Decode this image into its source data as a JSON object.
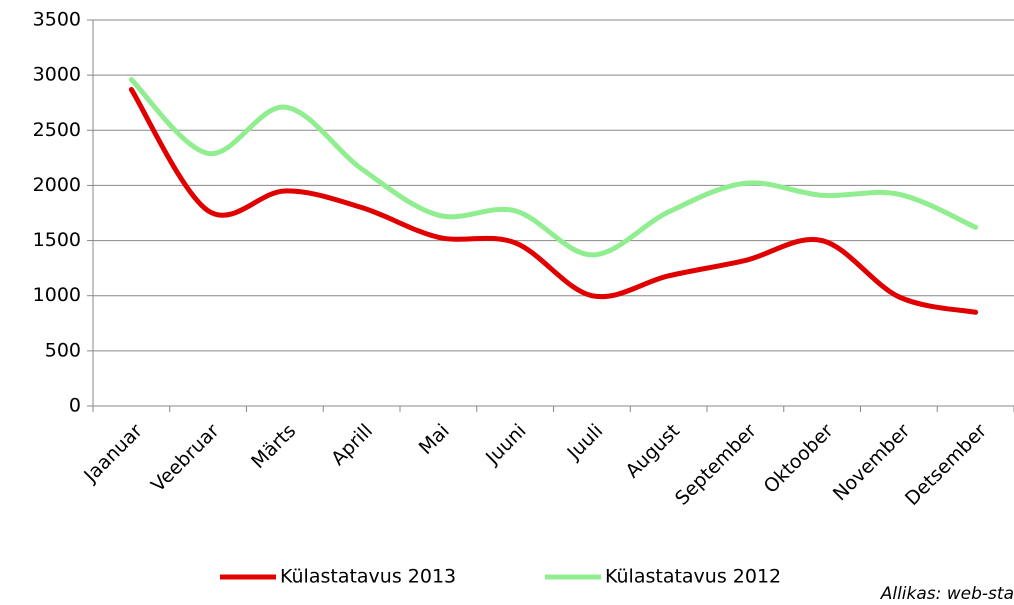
{
  "chart_data": {
    "type": "line",
    "categories": [
      "Jaanuar",
      "Veebruar",
      "Märts",
      "Aprill",
      "Mai",
      "Juuni",
      "Juuli",
      "August",
      "September",
      "Oktoober",
      "November",
      "Detsember"
    ],
    "series": [
      {
        "name": "Külastatavus 2013",
        "color": "#e00000",
        "values": [
          2870,
          1770,
          1950,
          1800,
          1530,
          1480,
          1000,
          1180,
          1320,
          1500,
          990,
          850
        ]
      },
      {
        "name": "Külastatavus 2012",
        "color": "#90ee90",
        "values": [
          2960,
          2290,
          2710,
          2150,
          1730,
          1770,
          1370,
          1760,
          2020,
          1910,
          1920,
          1620
        ]
      }
    ],
    "ylim": [
      0,
      3500
    ],
    "yticks": [
      0,
      500,
      1000,
      1500,
      2000,
      2500,
      3000,
      3500
    ],
    "grid": true,
    "legend": "bottom",
    "source": "Allikas: web-sta"
  }
}
